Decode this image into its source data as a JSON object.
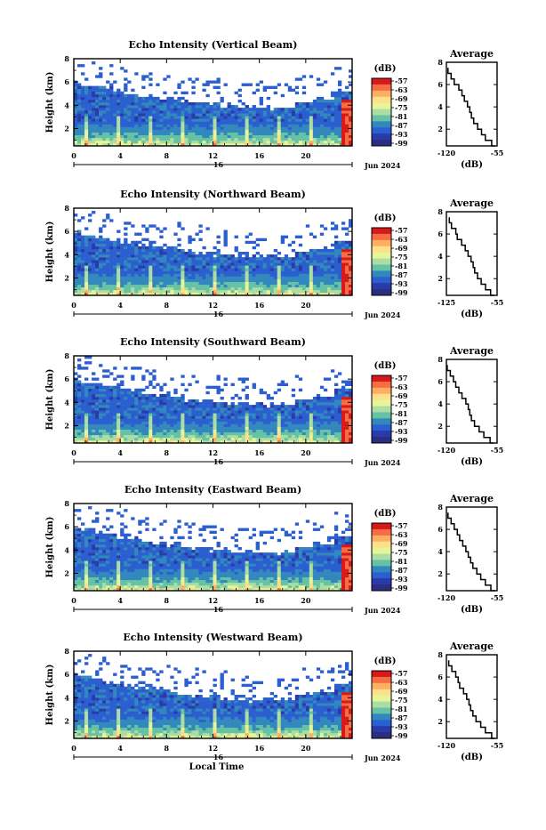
{
  "colorbar": {
    "unit": "(dB)",
    "labels": [
      "-57",
      "-63",
      "-69",
      "-75",
      "-81",
      "-87",
      "-93",
      "-99"
    ],
    "colors": [
      "#d7191c",
      "#f46d43",
      "#fdae61",
      "#fee08b",
      "#e6f598",
      "#abdda4",
      "#66c2a5",
      "#3288bd",
      "#2b5fd0",
      "#2a3aa8",
      "#2a2e80"
    ]
  },
  "shared": {
    "day": "16",
    "month_year": "Jun 2024",
    "bottom_axis_label": "Local Time",
    "height_label": "Height (km)",
    "avg_title": "Average",
    "avg_xlabel": "(dB)"
  },
  "chart_data": [
    {
      "type": "heatmap",
      "title": "Echo Intensity (Vertical Beam)",
      "ylabel": "Height (km)",
      "xlabel": "",
      "xlim": [
        0,
        24
      ],
      "ylim": [
        0.5,
        8
      ],
      "x_ticks": [
        "0",
        "4",
        "8",
        "12",
        "16",
        "20"
      ],
      "y_ticks": [
        "2",
        "4",
        "6",
        "8"
      ],
      "colorscale_db": [
        -99,
        -57
      ],
      "average_profile": {
        "xlim": [
          -120,
          -55
        ],
        "x_ticks": [
          "-120",
          "-55"
        ],
        "y_ticks": [
          "2",
          "4",
          "6",
          "8"
        ],
        "height_km": [
          0.5,
          1.0,
          1.5,
          2.0,
          2.5,
          3.0,
          3.5,
          4.0,
          4.5,
          5.0,
          5.5,
          6.0,
          6.5,
          7.0,
          7.5
        ],
        "value_db": [
          -58,
          -62,
          -70,
          -75,
          -80,
          -85,
          -88,
          -90,
          -93,
          -97,
          -100,
          -104,
          -110,
          -114,
          -118
        ]
      }
    },
    {
      "type": "heatmap",
      "title": "Echo Intensity (Northward Beam)",
      "ylabel": "Height (km)",
      "xlabel": "",
      "xlim": [
        0,
        24
      ],
      "ylim": [
        0.5,
        8
      ],
      "x_ticks": [
        "0",
        "4",
        "8",
        "12",
        "16",
        "20"
      ],
      "y_ticks": [
        "2",
        "4",
        "6",
        "8"
      ],
      "colorscale_db": [
        -99,
        -57
      ],
      "average_profile": {
        "xlim": [
          -125,
          -55
        ],
        "x_ticks": [
          "-125",
          "-55"
        ],
        "y_ticks": [
          "2",
          "4",
          "6",
          "8"
        ],
        "height_km": [
          0.5,
          1.0,
          1.5,
          2.0,
          2.5,
          3.0,
          3.5,
          4.0,
          4.5,
          5.0,
          5.5,
          6.0,
          6.5,
          7.0,
          7.5
        ],
        "value_db": [
          -59,
          -64,
          -71,
          -77,
          -82,
          -86,
          -88,
          -91,
          -95,
          -99,
          -104,
          -110,
          -112,
          -118,
          -121
        ]
      }
    },
    {
      "type": "heatmap",
      "title": "Echo Intensity (Southward Beam)",
      "ylabel": "Height (km)",
      "xlabel": "",
      "xlim": [
        0,
        24
      ],
      "ylim": [
        0.5,
        8
      ],
      "x_ticks": [
        "0",
        "4",
        "8",
        "12",
        "16",
        "20"
      ],
      "y_ticks": [
        "2",
        "4",
        "6",
        "8"
      ],
      "colorscale_db": [
        -99,
        -57
      ],
      "average_profile": {
        "xlim": [
          -120,
          -55
        ],
        "x_ticks": [
          "-120",
          "-55"
        ],
        "y_ticks": [
          "2",
          "4",
          "6",
          "8"
        ],
        "height_km": [
          0.5,
          1.0,
          1.5,
          2.0,
          2.5,
          3.0,
          3.5,
          4.0,
          4.5,
          5.0,
          5.5,
          6.0,
          6.5,
          7.0,
          7.5
        ],
        "value_db": [
          -60,
          -64,
          -72,
          -78,
          -84,
          -88,
          -90,
          -92,
          -95,
          -100,
          -104,
          -108,
          -111,
          -115,
          -119
        ]
      }
    },
    {
      "type": "heatmap",
      "title": "Echo Intensity (Eastward Beam)",
      "ylabel": "Height (km)",
      "xlabel": "",
      "xlim": [
        0,
        24
      ],
      "ylim": [
        0.5,
        8
      ],
      "x_ticks": [
        "0",
        "4",
        "8",
        "12",
        "16",
        "20"
      ],
      "y_ticks": [
        "2",
        "4",
        "6",
        "8"
      ],
      "colorscale_db": [
        -99,
        -57
      ],
      "average_profile": {
        "xlim": [
          -120,
          -55
        ],
        "x_ticks": [
          "-120",
          "-55"
        ],
        "y_ticks": [
          "2",
          "4",
          "6",
          "8"
        ],
        "height_km": [
          0.5,
          1.0,
          1.5,
          2.0,
          2.5,
          3.0,
          3.5,
          4.0,
          4.5,
          5.0,
          5.5,
          6.0,
          6.5,
          7.0,
          7.5
        ],
        "value_db": [
          -57,
          -63,
          -70,
          -76,
          -81,
          -86,
          -89,
          -92,
          -95,
          -99,
          -103,
          -106,
          -110,
          -114,
          -118
        ]
      }
    },
    {
      "type": "heatmap",
      "title": "Echo Intensity (Westward Beam)",
      "ylabel": "Height (km)",
      "xlabel": "Local Time",
      "xlim": [
        0,
        24
      ],
      "ylim": [
        0.5,
        8
      ],
      "x_ticks": [
        "0",
        "4",
        "8",
        "12",
        "16",
        "20"
      ],
      "y_ticks": [
        "2",
        "4",
        "6",
        "8"
      ],
      "colorscale_db": [
        -99,
        -57
      ],
      "average_profile": {
        "xlim": [
          -120,
          -55
        ],
        "x_ticks": [
          "-120",
          "-55"
        ],
        "y_ticks": [
          "2",
          "4",
          "6",
          "8"
        ],
        "height_km": [
          0.5,
          1.0,
          1.5,
          2.0,
          2.5,
          3.0,
          3.5,
          4.0,
          4.5,
          5.0,
          5.5,
          6.0,
          6.5,
          7.0,
          7.5
        ],
        "value_db": [
          -58,
          -62,
          -70,
          -76,
          -82,
          -86,
          -89,
          -91,
          -94,
          -98,
          -103,
          -105,
          -108,
          -113,
          -117
        ]
      }
    }
  ]
}
